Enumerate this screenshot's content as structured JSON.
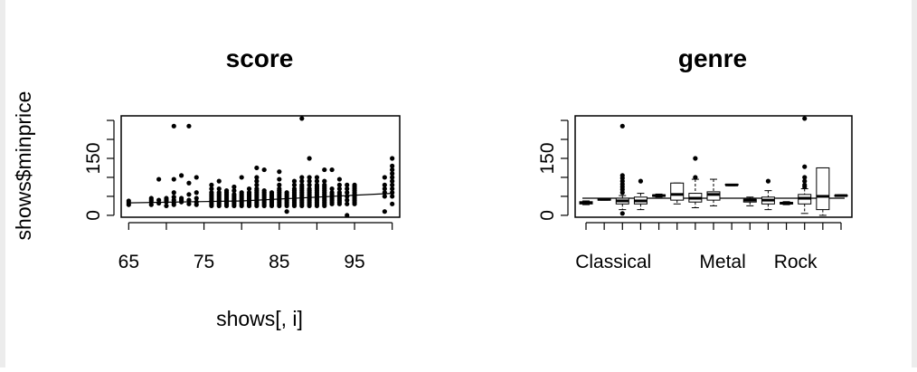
{
  "chart_data": [
    {
      "type": "scatter",
      "title": "score",
      "xlabel": "shows[, i]",
      "ylabel": "shows$minprice",
      "x_ticks": [
        65,
        75,
        85,
        95
      ],
      "y_ticks": [
        0,
        150
      ],
      "xlim": [
        64,
        101
      ],
      "ylim": [
        -5,
        262
      ],
      "has_smooth_line": true,
      "smooth_line": {
        "x": [
          65,
          80,
          90,
          100
        ],
        "y": [
          33,
          38,
          48,
          58
        ]
      },
      "points": [
        [
          65,
          28
        ],
        [
          65,
          33
        ],
        [
          65,
          38
        ],
        [
          68,
          28
        ],
        [
          68,
          35
        ],
        [
          68,
          40
        ],
        [
          68,
          45
        ],
        [
          69,
          32
        ],
        [
          69,
          40
        ],
        [
          69,
          95
        ],
        [
          70,
          25
        ],
        [
          70,
          35
        ],
        [
          70,
          40
        ],
        [
          70,
          45
        ],
        [
          71,
          28
        ],
        [
          71,
          33
        ],
        [
          71,
          40
        ],
        [
          71,
          48
        ],
        [
          71,
          60
        ],
        [
          71,
          95
        ],
        [
          71,
          235
        ],
        [
          72,
          35
        ],
        [
          72,
          40
        ],
        [
          72,
          45
        ],
        [
          72,
          105
        ],
        [
          73,
          30
        ],
        [
          73,
          40
        ],
        [
          73,
          55
        ],
        [
          73,
          85
        ],
        [
          73,
          235
        ],
        [
          74,
          28
        ],
        [
          74,
          35
        ],
        [
          74,
          45
        ],
        [
          74,
          60
        ],
        [
          74,
          100
        ],
        [
          76,
          25
        ],
        [
          76,
          30
        ],
        [
          76,
          35
        ],
        [
          76,
          40
        ],
        [
          76,
          45
        ],
        [
          76,
          50
        ],
        [
          76,
          55
        ],
        [
          76,
          60
        ],
        [
          76,
          70
        ],
        [
          76,
          80
        ],
        [
          77,
          25
        ],
        [
          77,
          30
        ],
        [
          77,
          35
        ],
        [
          77,
          40
        ],
        [
          77,
          45
        ],
        [
          77,
          50
        ],
        [
          77,
          55
        ],
        [
          77,
          60
        ],
        [
          77,
          70
        ],
        [
          77,
          90
        ],
        [
          78,
          25
        ],
        [
          78,
          30
        ],
        [
          78,
          35
        ],
        [
          78,
          40
        ],
        [
          78,
          45
        ],
        [
          78,
          50
        ],
        [
          78,
          55
        ],
        [
          78,
          60
        ],
        [
          78,
          65
        ],
        [
          79,
          25
        ],
        [
          79,
          30
        ],
        [
          79,
          35
        ],
        [
          79,
          40
        ],
        [
          79,
          45
        ],
        [
          79,
          50
        ],
        [
          79,
          55
        ],
        [
          79,
          65
        ],
        [
          79,
          75
        ],
        [
          80,
          25
        ],
        [
          80,
          30
        ],
        [
          80,
          35
        ],
        [
          80,
          40
        ],
        [
          80,
          45
        ],
        [
          80,
          50
        ],
        [
          80,
          55
        ],
        [
          80,
          60
        ],
        [
          80,
          100
        ],
        [
          81,
          25
        ],
        [
          81,
          30
        ],
        [
          81,
          35
        ],
        [
          81,
          40
        ],
        [
          81,
          45
        ],
        [
          81,
          50
        ],
        [
          81,
          55
        ],
        [
          81,
          60
        ],
        [
          81,
          70
        ],
        [
          82,
          25
        ],
        [
          82,
          30
        ],
        [
          82,
          35
        ],
        [
          82,
          40
        ],
        [
          82,
          45
        ],
        [
          82,
          50
        ],
        [
          82,
          55
        ],
        [
          82,
          60
        ],
        [
          82,
          65
        ],
        [
          82,
          70
        ],
        [
          82,
          80
        ],
        [
          82,
          90
        ],
        [
          82,
          100
        ],
        [
          82,
          125
        ],
        [
          83,
          25
        ],
        [
          83,
          30
        ],
        [
          83,
          35
        ],
        [
          83,
          40
        ],
        [
          83,
          45
        ],
        [
          83,
          50
        ],
        [
          83,
          55
        ],
        [
          83,
          60
        ],
        [
          83,
          65
        ],
        [
          83,
          120
        ],
        [
          84,
          25
        ],
        [
          84,
          30
        ],
        [
          84,
          35
        ],
        [
          84,
          40
        ],
        [
          84,
          45
        ],
        [
          84,
          50
        ],
        [
          84,
          55
        ],
        [
          84,
          60
        ],
        [
          85,
          25
        ],
        [
          85,
          30
        ],
        [
          85,
          35
        ],
        [
          85,
          40
        ],
        [
          85,
          45
        ],
        [
          85,
          50
        ],
        [
          85,
          55
        ],
        [
          85,
          60
        ],
        [
          85,
          65
        ],
        [
          85,
          70
        ],
        [
          85,
          80
        ],
        [
          85,
          95
        ],
        [
          85,
          115
        ],
        [
          86,
          10
        ],
        [
          86,
          25
        ],
        [
          86,
          30
        ],
        [
          86,
          35
        ],
        [
          86,
          40
        ],
        [
          86,
          45
        ],
        [
          86,
          50
        ],
        [
          86,
          55
        ],
        [
          86,
          60
        ],
        [
          87,
          25
        ],
        [
          87,
          30
        ],
        [
          87,
          35
        ],
        [
          87,
          40
        ],
        [
          87,
          45
        ],
        [
          87,
          50
        ],
        [
          87,
          55
        ],
        [
          87,
          60
        ],
        [
          87,
          65
        ],
        [
          87,
          70
        ],
        [
          87,
          80
        ],
        [
          87,
          90
        ],
        [
          88,
          25
        ],
        [
          88,
          30
        ],
        [
          88,
          35
        ],
        [
          88,
          40
        ],
        [
          88,
          45
        ],
        [
          88,
          50
        ],
        [
          88,
          55
        ],
        [
          88,
          60
        ],
        [
          88,
          65
        ],
        [
          88,
          70
        ],
        [
          88,
          75
        ],
        [
          88,
          80
        ],
        [
          88,
          90
        ],
        [
          88,
          100
        ],
        [
          88,
          255
        ],
        [
          89,
          25
        ],
        [
          89,
          30
        ],
        [
          89,
          35
        ],
        [
          89,
          40
        ],
        [
          89,
          45
        ],
        [
          89,
          50
        ],
        [
          89,
          55
        ],
        [
          89,
          60
        ],
        [
          89,
          65
        ],
        [
          89,
          70
        ],
        [
          89,
          80
        ],
        [
          89,
          90
        ],
        [
          89,
          100
        ],
        [
          89,
          150
        ],
        [
          90,
          25
        ],
        [
          90,
          30
        ],
        [
          90,
          35
        ],
        [
          90,
          40
        ],
        [
          90,
          45
        ],
        [
          90,
          50
        ],
        [
          90,
          55
        ],
        [
          90,
          60
        ],
        [
          90,
          65
        ],
        [
          90,
          70
        ],
        [
          90,
          75
        ],
        [
          90,
          80
        ],
        [
          90,
          90
        ],
        [
          90,
          100
        ],
        [
          91,
          25
        ],
        [
          91,
          30
        ],
        [
          91,
          35
        ],
        [
          91,
          40
        ],
        [
          91,
          45
        ],
        [
          91,
          50
        ],
        [
          91,
          55
        ],
        [
          91,
          60
        ],
        [
          91,
          65
        ],
        [
          91,
          70
        ],
        [
          91,
          75
        ],
        [
          91,
          80
        ],
        [
          91,
          90
        ],
        [
          91,
          120
        ],
        [
          92,
          30
        ],
        [
          92,
          35
        ],
        [
          92,
          40
        ],
        [
          92,
          45
        ],
        [
          92,
          50
        ],
        [
          92,
          55
        ],
        [
          92,
          60
        ],
        [
          92,
          70
        ],
        [
          92,
          120
        ],
        [
          93,
          30
        ],
        [
          93,
          35
        ],
        [
          93,
          40
        ],
        [
          93,
          45
        ],
        [
          93,
          50
        ],
        [
          93,
          55
        ],
        [
          93,
          60
        ],
        [
          93,
          70
        ],
        [
          93,
          80
        ],
        [
          93,
          95
        ],
        [
          94,
          0
        ],
        [
          94,
          30
        ],
        [
          94,
          40
        ],
        [
          94,
          50
        ],
        [
          94,
          60
        ],
        [
          94,
          70
        ],
        [
          94,
          80
        ],
        [
          95,
          30
        ],
        [
          95,
          35
        ],
        [
          95,
          40
        ],
        [
          95,
          45
        ],
        [
          95,
          50
        ],
        [
          95,
          55
        ],
        [
          95,
          60
        ],
        [
          95,
          65
        ],
        [
          95,
          70
        ],
        [
          95,
          75
        ],
        [
          95,
          80
        ],
        [
          99,
          10
        ],
        [
          99,
          50
        ],
        [
          99,
          60
        ],
        [
          99,
          70
        ],
        [
          99,
          80
        ],
        [
          99,
          100
        ],
        [
          100,
          30
        ],
        [
          100,
          50
        ],
        [
          100,
          60
        ],
        [
          100,
          70
        ],
        [
          100,
          80
        ],
        [
          100,
          90
        ],
        [
          100,
          100
        ],
        [
          100,
          110
        ],
        [
          100,
          120
        ],
        [
          100,
          130
        ],
        [
          100,
          150
        ]
      ]
    },
    {
      "type": "box",
      "title": "genre",
      "xlabel": "",
      "ylabel": "",
      "y_ticks": [
        0,
        150
      ],
      "x_tick_labels": [
        "Classical",
        "Metal",
        "Rock"
      ],
      "x_tick_label_positions": [
        1.5,
        7.5,
        11.5
      ],
      "ylim": [
        -5,
        262
      ],
      "has_mean_line": true,
      "mean_line_y": 45,
      "boxes": [
        {
          "min": 28,
          "q1": 30,
          "median": 33,
          "q3": 36,
          "max": 38,
          "outliers": []
        },
        {
          "min": 40,
          "q1": 40,
          "median": 42,
          "q3": 43,
          "max": 44,
          "outliers": []
        },
        {
          "min": 15,
          "q1": 30,
          "median": 38,
          "q3": 45,
          "max": 52,
          "outliers": [
            5,
            60,
            68,
            75,
            82,
            90,
            98,
            105,
            235
          ]
        },
        {
          "min": 15,
          "q1": 30,
          "median": 38,
          "q3": 48,
          "max": 58,
          "outliers": [
            90
          ]
        },
        {
          "min": 48,
          "q1": 50,
          "median": 52,
          "q3": 54,
          "max": 56,
          "outliers": []
        },
        {
          "min": 30,
          "q1": 40,
          "median": 55,
          "q3": 85,
          "max": 85,
          "outliers": []
        },
        {
          "min": 20,
          "q1": 35,
          "median": 45,
          "q3": 58,
          "max": 95,
          "outliers": [
            100,
            150
          ]
        },
        {
          "min": 25,
          "q1": 40,
          "median": 55,
          "q3": 62,
          "max": 95,
          "outliers": []
        },
        {
          "min": 78,
          "q1": 80,
          "median": 80,
          "q3": 82,
          "max": 82,
          "outliers": []
        },
        {
          "min": 25,
          "q1": 35,
          "median": 40,
          "q3": 42,
          "max": 48,
          "outliers": []
        },
        {
          "min": 15,
          "q1": 30,
          "median": 40,
          "q3": 48,
          "max": 65,
          "outliers": [
            90
          ]
        },
        {
          "min": 28,
          "q1": 30,
          "median": 32,
          "q3": 34,
          "max": 36,
          "outliers": []
        },
        {
          "min": 5,
          "q1": 30,
          "median": 45,
          "q3": 55,
          "max": 70,
          "outliers": [
            75,
            80,
            90,
            100,
            128,
            255
          ]
        },
        {
          "min": 0,
          "q1": 15,
          "median": 50,
          "q3": 125,
          "max": 125,
          "outliers": []
        },
        {
          "min": 50,
          "q1": 51,
          "median": 52,
          "q3": 53,
          "max": 54,
          "outliers": []
        }
      ]
    }
  ]
}
